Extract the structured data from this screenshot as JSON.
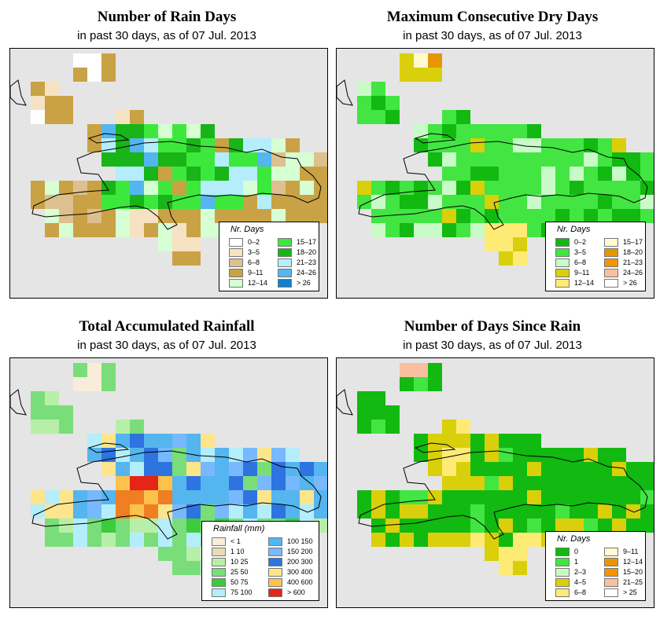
{
  "colors": {
    "background": "#e5e5e5",
    "outline": "#000000",
    "rd": [
      "#ffffff",
      "#f5e2c3",
      "#dcc08d",
      "#c9a245",
      "#d6ffd4",
      "#3de83d",
      "#18b418",
      "#b4eefc",
      "#55b5ee",
      "#1180cc"
    ],
    "dd": [
      "#11b911",
      "#42e542",
      "#c9fbc9",
      "#d9cf0a",
      "#fdeb75",
      "#fffad0",
      "#e69600",
      "#f59400",
      "#f9c0a0",
      "#ffffff"
    ],
    "rf": [
      "#f9ecd8",
      "#eadbb7",
      "#b8efa8",
      "#79de79",
      "#3dcb3d",
      "#b4eefc",
      "#55b5ee",
      "#78b8ff",
      "#2d74e0",
      "#fde58c",
      "#fcc24c",
      "#f07e22",
      "#e52515"
    ],
    "ds": [
      "#11b911",
      "#42e542",
      "#c9fbc9",
      "#d9cf0a",
      "#fdeb75",
      "#fffad0",
      "#e69600",
      "#f59400",
      "#f9c0a0",
      "#ffffff"
    ]
  },
  "panels": [
    {
      "title": "Number of Rain Days",
      "subtitle": "in past 30 days, as of  07 Jul. 2013",
      "legend": {
        "title": "Nr. Days",
        "items": [
          {
            "label": "0–2",
            "color": "#ffffff"
          },
          {
            "label": "3–5",
            "color": "#f5e2c3"
          },
          {
            "label": "6–8",
            "color": "#dcc08d"
          },
          {
            "label": "9–11",
            "color": "#c9a245"
          },
          {
            "label": "12–14",
            "color": "#d6ffd4"
          },
          {
            "label": "15–17",
            "color": "#3de83d"
          },
          {
            "label": "18–20",
            "color": "#18b418"
          },
          {
            "label": "21–23",
            "color": "#b4eefc"
          },
          {
            "label": "24–26",
            "color": "#55b5ee"
          },
          {
            "label": "> 26",
            "color": "#1180cc"
          }
        ]
      }
    },
    {
      "title": "Maximum Consecutive Dry Days",
      "subtitle": "in past 30 days, as of  07 Jul. 2013",
      "legend": {
        "title": "Nr. Days",
        "items": [
          {
            "label": "0–2",
            "color": "#11b911"
          },
          {
            "label": "3–5",
            "color": "#42e542"
          },
          {
            "label": "6–8",
            "color": "#c9fbc9"
          },
          {
            "label": "9–11",
            "color": "#d9cf0a"
          },
          {
            "label": "12–14",
            "color": "#fdeb75"
          },
          {
            "label": "15–17",
            "color": "#fffad0"
          },
          {
            "label": "18–20",
            "color": "#e69600"
          },
          {
            "label": "21–23",
            "color": "#f59400"
          },
          {
            "label": "24–26",
            "color": "#f9c0a0"
          },
          {
            "label": "> 26",
            "color": "#ffffff"
          }
        ]
      }
    },
    {
      "title": "Total Accumulated Rainfall",
      "subtitle": "in past 30 days, as of  07 Jul. 2013",
      "legend": {
        "title": "Rainfall (mm)",
        "items": [
          {
            "label": "< 1",
            "color": "#f9ecd8"
          },
          {
            "label": "1    10",
            "color": "#eadbb7"
          },
          {
            "label": "10    25",
            "color": "#b8efa8"
          },
          {
            "label": "25    50",
            "color": "#79de79"
          },
          {
            "label": "50    75",
            "color": "#3dcb3d"
          },
          {
            "label": "75   100",
            "color": "#b4eefc"
          },
          {
            "label": "100  150",
            "color": "#55b5ee"
          },
          {
            "label": "150  200",
            "color": "#78b8ff"
          },
          {
            "label": "200  300",
            "color": "#2d74e0"
          },
          {
            "label": "300  400",
            "color": "#fde58c"
          },
          {
            "label": "400  600",
            "color": "#fcc24c"
          },
          {
            "label": "> 600",
            "color": "#e52515"
          }
        ]
      }
    },
    {
      "title": "Number of Days Since Rain",
      "subtitle": "in past 30 days, as of  07 Jul. 2013",
      "legend": {
        "title": "Nr. Days",
        "items": [
          {
            "label": "0",
            "color": "#11b911"
          },
          {
            "label": "1",
            "color": "#42e542"
          },
          {
            "label": "2–3",
            "color": "#c9fbc9"
          },
          {
            "label": "4–5",
            "color": "#d9cf0a"
          },
          {
            "label": "6–8",
            "color": "#fdeb75"
          },
          {
            "label": "9–11",
            "color": "#fffad0"
          },
          {
            "label": "12–14",
            "color": "#e69600"
          },
          {
            "label": "15–20",
            "color": "#f59400"
          },
          {
            "label": "21–25",
            "color": "#f9c0a0"
          },
          {
            "label": "> 25",
            "color": "#ffffff"
          }
        ]
      }
    }
  ]
}
